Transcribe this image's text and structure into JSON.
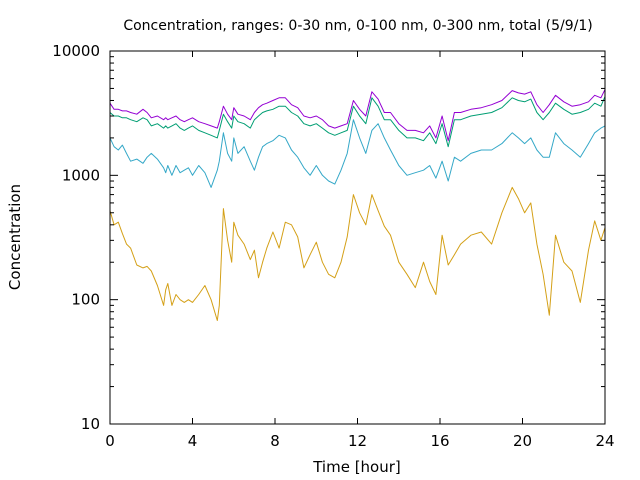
{
  "chart_data": {
    "type": "line",
    "title": "Concentration, ranges: 0-30 nm, 0-100 nm, 0-300 nm, total (5/9/1)",
    "xlabel": "Time [hour]",
    "ylabel": "Concentration",
    "xlim": [
      0,
      24
    ],
    "ylim": [
      10,
      10000
    ],
    "yscale": "log",
    "grid": false,
    "legend": "none",
    "x_ticks": [
      "0",
      "4",
      "8",
      "12",
      "16",
      "20",
      "24"
    ],
    "y_ticks": [
      "10",
      "100",
      "1000",
      "10000"
    ],
    "series": [
      {
        "color": "#d4a017",
        "x": [
          0,
          0.2,
          0.4,
          0.6,
          0.8,
          1.0,
          1.3,
          1.6,
          1.8,
          2.0,
          2.3,
          2.6,
          2.7,
          2.8,
          3.0,
          3.2,
          3.4,
          3.6,
          3.8,
          4.0,
          4.3,
          4.6,
          4.9,
          5.2,
          5.3,
          5.5,
          5.7,
          5.9,
          6.0,
          6.2,
          6.5,
          6.8,
          7.0,
          7.2,
          7.4,
          7.6,
          7.9,
          8.2,
          8.5,
          8.8,
          9.1,
          9.4,
          9.7,
          10.0,
          10.3,
          10.6,
          10.9,
          11.2,
          11.5,
          11.8,
          12.1,
          12.4,
          12.7,
          13.0,
          13.3,
          13.6,
          14.0,
          14.4,
          14.8,
          15.2,
          15.5,
          15.8,
          16.1,
          16.4,
          16.7,
          17.0,
          17.5,
          18.0,
          18.5,
          19.0,
          19.5,
          19.8,
          20.1,
          20.4,
          20.7,
          21.0,
          21.3,
          21.6,
          22.0,
          22.4,
          22.8,
          23.2,
          23.5,
          23.8,
          24.0
        ],
        "y": [
          520,
          400,
          420,
          340,
          280,
          260,
          190,
          180,
          185,
          170,
          130,
          90,
          120,
          135,
          90,
          110,
          100,
          95,
          100,
          95,
          110,
          130,
          100,
          68,
          90,
          540,
          300,
          200,
          420,
          330,
          280,
          210,
          250,
          150,
          200,
          260,
          350,
          260,
          420,
          400,
          320,
          180,
          230,
          290,
          200,
          160,
          150,
          200,
          320,
          700,
          500,
          400,
          700,
          520,
          390,
          330,
          200,
          160,
          125,
          200,
          140,
          110,
          330,
          190,
          230,
          280,
          330,
          350,
          280,
          500,
          800,
          650,
          500,
          600,
          280,
          160,
          75,
          330,
          200,
          170,
          95,
          250,
          430,
          300,
          380
        ]
      },
      {
        "color": "#35a8c8",
        "x": [
          0,
          0.2,
          0.4,
          0.6,
          0.8,
          1.0,
          1.3,
          1.6,
          1.8,
          2.0,
          2.3,
          2.6,
          2.7,
          2.8,
          3.0,
          3.2,
          3.4,
          3.6,
          3.8,
          4.0,
          4.3,
          4.6,
          4.9,
          5.2,
          5.3,
          5.5,
          5.7,
          5.9,
          6.0,
          6.2,
          6.5,
          6.8,
          7.0,
          7.2,
          7.4,
          7.6,
          7.9,
          8.2,
          8.5,
          8.8,
          9.1,
          9.4,
          9.7,
          10.0,
          10.3,
          10.6,
          10.9,
          11.2,
          11.5,
          11.8,
          12.1,
          12.4,
          12.7,
          13.0,
          13.3,
          13.6,
          14.0,
          14.4,
          14.8,
          15.2,
          15.5,
          15.8,
          16.1,
          16.4,
          16.7,
          17.0,
          17.5,
          18.0,
          18.5,
          19.0,
          19.5,
          19.8,
          20.1,
          20.4,
          20.7,
          21.0,
          21.3,
          21.6,
          22.0,
          22.4,
          22.8,
          23.2,
          23.5,
          23.8,
          24.0
        ],
        "y": [
          2000,
          1700,
          1600,
          1750,
          1500,
          1300,
          1350,
          1250,
          1400,
          1500,
          1350,
          1150,
          1050,
          1200,
          1000,
          1200,
          1050,
          1100,
          1150,
          1000,
          1200,
          1050,
          800,
          1100,
          1300,
          2200,
          1500,
          1300,
          2000,
          1500,
          1700,
          1300,
          1100,
          1400,
          1700,
          1800,
          1900,
          2100,
          2000,
          1600,
          1400,
          1150,
          1000,
          1200,
          1000,
          900,
          850,
          1100,
          1500,
          2800,
          2000,
          1500,
          2300,
          2600,
          2000,
          1600,
          1200,
          1000,
          1050,
          1100,
          1200,
          950,
          1300,
          900,
          1400,
          1300,
          1500,
          1600,
          1600,
          1800,
          2200,
          2000,
          1800,
          2000,
          1600,
          1400,
          1400,
          2200,
          1800,
          1600,
          1400,
          1800,
          2200,
          2400,
          2500
        ]
      },
      {
        "color": "#009e73",
        "x": [
          0,
          0.2,
          0.4,
          0.6,
          0.8,
          1.0,
          1.3,
          1.6,
          1.8,
          2.0,
          2.3,
          2.6,
          2.7,
          2.8,
          3.0,
          3.2,
          3.4,
          3.6,
          3.8,
          4.0,
          4.3,
          4.6,
          4.9,
          5.2,
          5.3,
          5.5,
          5.7,
          5.9,
          6.0,
          6.2,
          6.5,
          6.8,
          7.0,
          7.2,
          7.4,
          7.6,
          7.9,
          8.2,
          8.5,
          8.8,
          9.1,
          9.4,
          9.7,
          10.0,
          10.3,
          10.6,
          10.9,
          11.2,
          11.5,
          11.8,
          12.1,
          12.4,
          12.7,
          13.0,
          13.3,
          13.6,
          14.0,
          14.4,
          14.8,
          15.2,
          15.5,
          15.8,
          16.1,
          16.4,
          16.7,
          17.0,
          17.5,
          18.0,
          18.5,
          19.0,
          19.5,
          19.8,
          20.1,
          20.4,
          20.7,
          21.0,
          21.3,
          21.6,
          22.0,
          22.4,
          22.8,
          23.2,
          23.5,
          23.8,
          24.0
        ],
        "y": [
          3200,
          3000,
          3000,
          2900,
          2900,
          2800,
          2700,
          2900,
          2800,
          2500,
          2600,
          2400,
          2500,
          2400,
          2500,
          2600,
          2400,
          2300,
          2400,
          2500,
          2300,
          2200,
          2100,
          2000,
          2300,
          3100,
          2700,
          2400,
          3000,
          2700,
          2600,
          2400,
          2800,
          3000,
          3200,
          3300,
          3400,
          3600,
          3600,
          3200,
          3000,
          2600,
          2500,
          2600,
          2400,
          2200,
          2100,
          2200,
          2300,
          3600,
          3000,
          2600,
          4200,
          3600,
          2800,
          2800,
          2300,
          2000,
          2000,
          1900,
          2200,
          1800,
          2600,
          1700,
          2800,
          2800,
          3000,
          3100,
          3200,
          3500,
          4200,
          4000,
          3900,
          4100,
          3200,
          2800,
          3200,
          3800,
          3400,
          3100,
          3200,
          3400,
          3800,
          3600,
          4300
        ]
      },
      {
        "color": "#9400d3",
        "x": [
          0,
          0.2,
          0.4,
          0.6,
          0.8,
          1.0,
          1.3,
          1.6,
          1.8,
          2.0,
          2.3,
          2.6,
          2.7,
          2.8,
          3.0,
          3.2,
          3.4,
          3.6,
          3.8,
          4.0,
          4.3,
          4.6,
          4.9,
          5.2,
          5.3,
          5.5,
          5.7,
          5.9,
          6.0,
          6.2,
          6.5,
          6.8,
          7.0,
          7.2,
          7.4,
          7.6,
          7.9,
          8.2,
          8.5,
          8.8,
          9.1,
          9.4,
          9.7,
          10.0,
          10.3,
          10.6,
          10.9,
          11.2,
          11.5,
          11.8,
          12.1,
          12.4,
          12.7,
          13.0,
          13.3,
          13.6,
          14.0,
          14.4,
          14.8,
          15.2,
          15.5,
          15.8,
          16.1,
          16.4,
          16.7,
          17.0,
          17.5,
          18.0,
          18.5,
          19.0,
          19.5,
          19.8,
          20.1,
          20.4,
          20.7,
          21.0,
          21.3,
          21.6,
          22.0,
          22.4,
          22.8,
          23.2,
          23.5,
          23.8,
          24.0
        ],
        "y": [
          3800,
          3400,
          3400,
          3300,
          3300,
          3200,
          3100,
          3400,
          3200,
          2900,
          3000,
          2800,
          2900,
          2800,
          2900,
          3000,
          2800,
          2700,
          2800,
          2900,
          2700,
          2600,
          2500,
          2400,
          2700,
          3600,
          3100,
          2800,
          3500,
          3100,
          3000,
          2800,
          3200,
          3500,
          3700,
          3800,
          4000,
          4200,
          4200,
          3700,
          3500,
          3000,
          2900,
          3000,
          2800,
          2500,
          2400,
          2500,
          2600,
          4000,
          3400,
          3000,
          4700,
          4100,
          3200,
          3200,
          2600,
          2300,
          2300,
          2200,
          2500,
          2000,
          3000,
          1900,
          3200,
          3200,
          3400,
          3500,
          3700,
          4000,
          4800,
          4600,
          4500,
          4700,
          3700,
          3200,
          3700,
          4400,
          3900,
          3600,
          3700,
          3900,
          4400,
          4200,
          4900
        ]
      }
    ]
  }
}
